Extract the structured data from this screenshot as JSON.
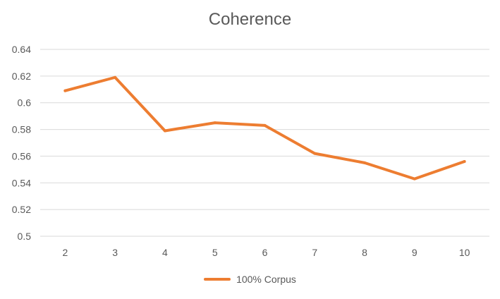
{
  "chart_data": {
    "type": "line",
    "title": "Coherence",
    "xlabel": "",
    "ylabel": "",
    "categories": [
      "2",
      "3",
      "4",
      "5",
      "6",
      "7",
      "8",
      "9",
      "10"
    ],
    "series": [
      {
        "name": "100% Corpus",
        "values": [
          0.609,
          0.619,
          0.579,
          0.585,
          0.583,
          0.562,
          0.555,
          0.543,
          0.556
        ]
      }
    ],
    "ylim": [
      0.5,
      0.64
    ],
    "yticks": [
      "0.5",
      "0.52",
      "0.54",
      "0.56",
      "0.58",
      "0.6",
      "0.62",
      "0.64"
    ],
    "grid": true,
    "legend_position": "bottom",
    "colors": {
      "series": "#ED7D31",
      "grid": "#D9D9D9",
      "text": "#595959"
    }
  }
}
